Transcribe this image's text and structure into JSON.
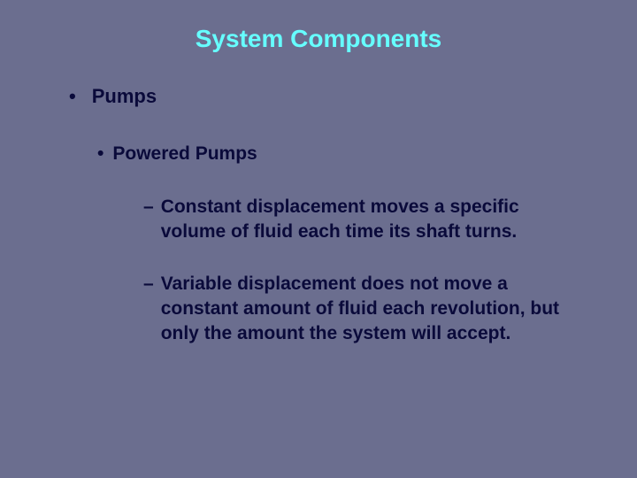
{
  "colors": {
    "background": "#6b6e8f",
    "title": "#66ffff",
    "heading": "#0a0a3a",
    "body": "#0a0a3a"
  },
  "typography": {
    "title_fontsize": 28,
    "level1_fontsize": 22,
    "level2_fontsize": 21,
    "level3_fontsize": 21,
    "font_family": "Arial, Helvetica, sans-serif",
    "font_weight": "bold"
  },
  "title": "System Components",
  "level1": {
    "bullet": "•",
    "text": "Pumps"
  },
  "level2": {
    "bullet": "•",
    "text": "Powered Pumps"
  },
  "level3a": {
    "dash": "–",
    "text": "Constant displacement moves a specific volume of fluid each time its shaft turns."
  },
  "level3b": {
    "dash": "–",
    "text": "Variable displacement does not move a constant amount of fluid each revolution, but only the amount the system will accept."
  }
}
